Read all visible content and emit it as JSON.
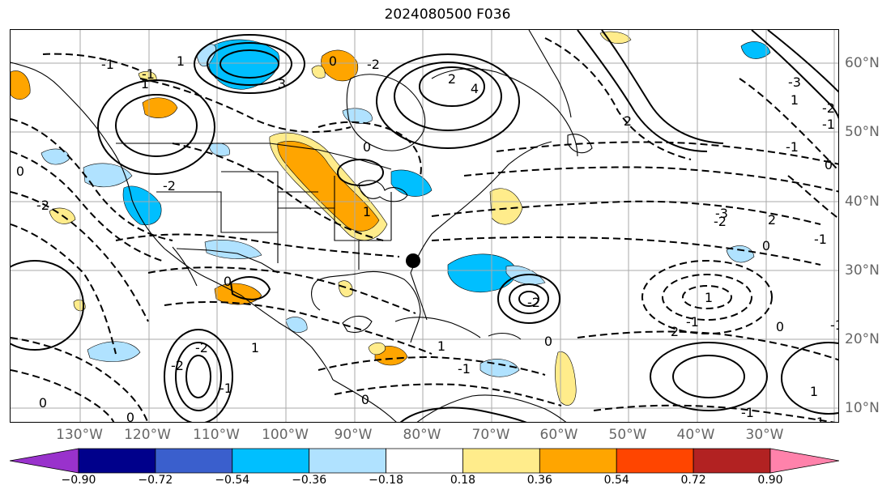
{
  "title": "2024080500 F036",
  "map": {
    "lon_labels": [
      "130°W",
      "120°W",
      "110°W",
      "100°W",
      "90°W",
      "80°W",
      "70°W",
      "60°W",
      "50°W",
      "40°W",
      "30°W"
    ],
    "lat_labels": [
      "60°N",
      "50°N",
      "40°N",
      "30°N",
      "20°N",
      "10°N"
    ],
    "contour_labels": [
      "0",
      "-2",
      "3",
      "2",
      "4",
      "2",
      "-3",
      "-1",
      "1",
      "-2",
      "0",
      "-2",
      "0",
      "1",
      "-2",
      "1",
      "-1",
      "-2",
      "2",
      "0",
      "-1",
      "2",
      "-3",
      "-2",
      "-1",
      "0",
      "1",
      "-1",
      "1",
      "-2",
      "0",
      "-1",
      "0",
      "-2",
      "1",
      "-1",
      "0",
      "0",
      "-1",
      "1",
      "0",
      "-1",
      "1",
      "1",
      "-1",
      "0"
    ],
    "colors": {
      "coast": "#000000",
      "grid": "#aaaaaa",
      "contour": "#000000",
      "marker": "#000000"
    }
  },
  "colorbar": {
    "tick_labels": [
      "−0.90",
      "−0.72",
      "−0.54",
      "−0.36",
      "−0.18",
      "0.18",
      "0.36",
      "0.54",
      "0.72",
      "0.90"
    ],
    "colors": [
      "#9932cc",
      "#00008b",
      "#3a5fcd",
      "#00bfff",
      "#b0e2ff",
      "#ffffff",
      "#ffec8b",
      "#ffa500",
      "#ff4500",
      "#b22222",
      "#ff82ab"
    ]
  }
}
